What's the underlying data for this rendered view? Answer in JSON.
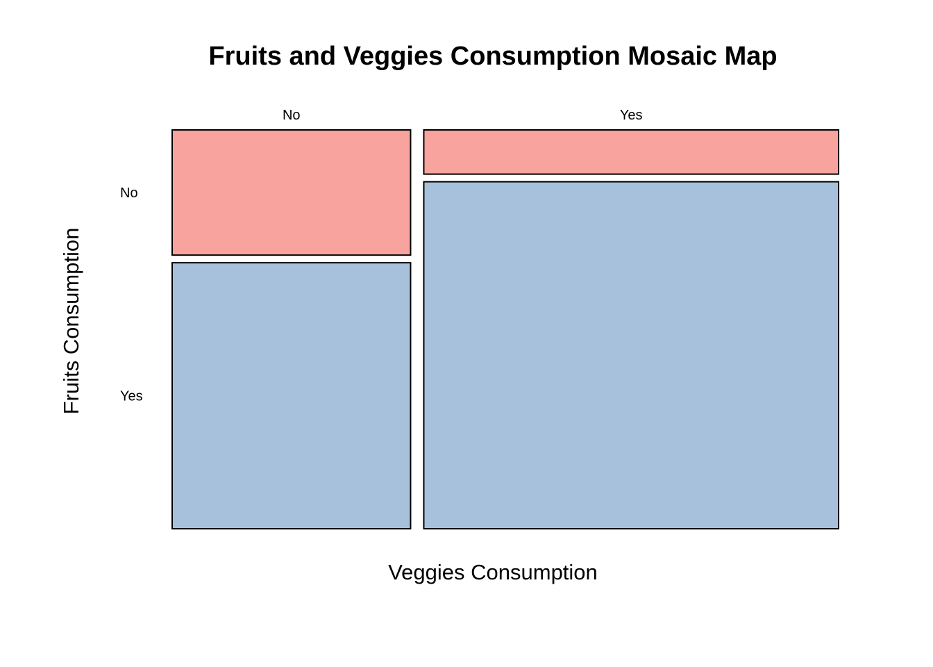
{
  "chart_data": {
    "type": "mosaic",
    "title": "Fruits and Veggies Consumption Mosaic Map",
    "xlabel": "Veggies Consumption",
    "ylabel": "Fruits Consumption",
    "x_categories": [
      "No",
      "Yes"
    ],
    "y_categories": [
      "No",
      "Yes"
    ],
    "x_proportions": [
      0.365,
      0.635
    ],
    "conditional_proportions": {
      "No": {
        "No": 0.32,
        "Yes": 0.68
      },
      "Yes": {
        "No": 0.113,
        "Yes": 0.887
      }
    },
    "row_label_column": "No",
    "colors": {
      "No": "#f8a39e",
      "Yes": "#a7c0dc"
    }
  }
}
